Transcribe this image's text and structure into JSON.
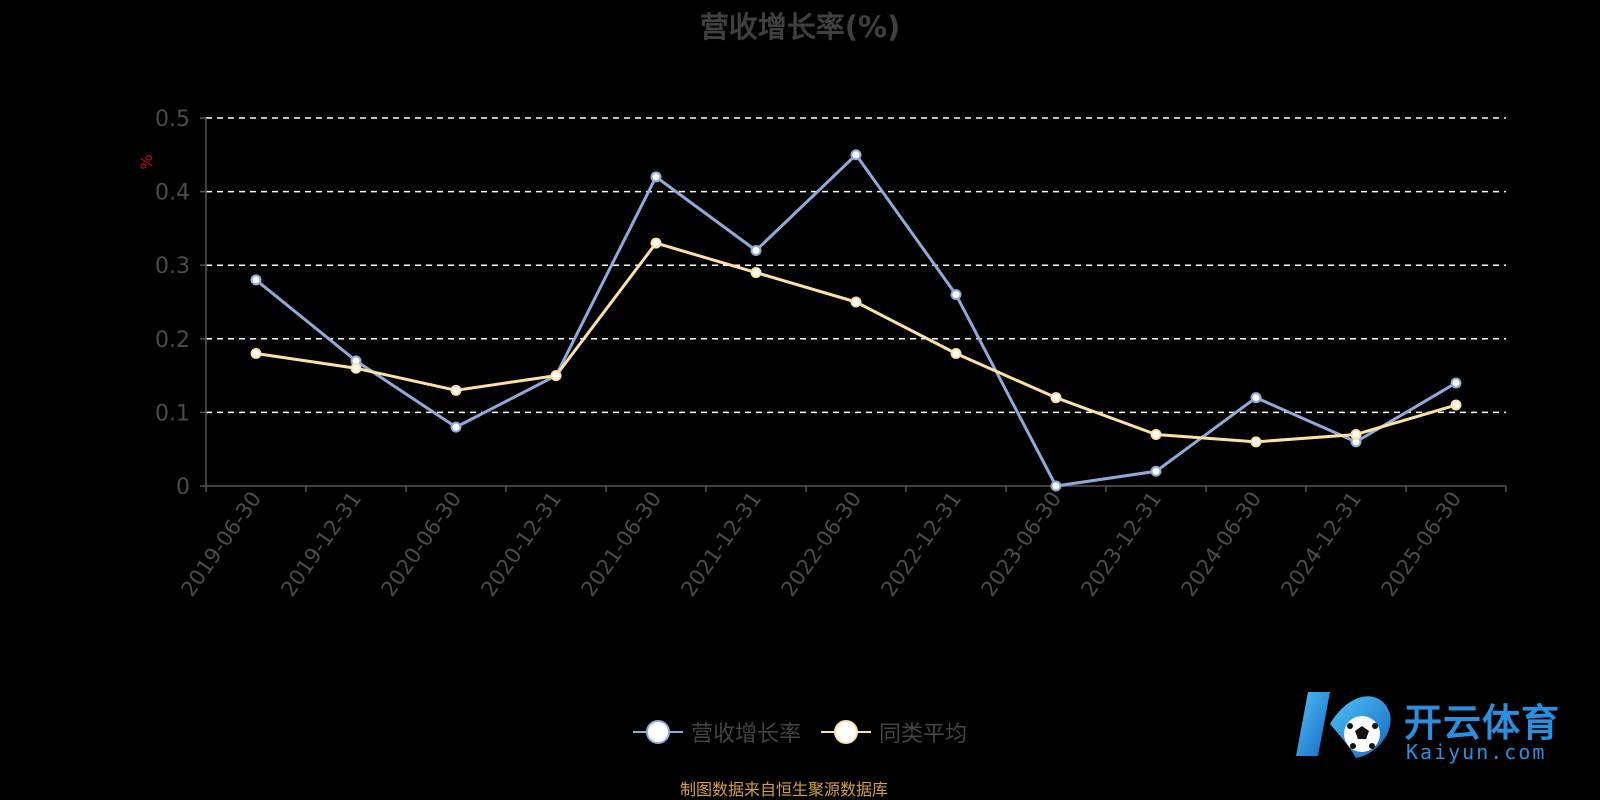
{
  "colors": {
    "background": "#000000",
    "series_revenue_growth": "#8eaadb",
    "series_peer_average": "#ffe0a3",
    "grid": "#ffffff",
    "axis": "#555555",
    "y_unit": "#d0021b",
    "source_note": "#d4a23a"
  },
  "chart_data": {
    "type": "line",
    "title": "营收增长率(%)",
    "ylabel": "%",
    "xlabel": "",
    "categories": [
      "2019-06-30",
      "2019-12-31",
      "2020-06-30",
      "2020-12-31",
      "2021-06-30",
      "2021-12-31",
      "2022-06-30",
      "2022-12-31",
      "2023-06-30",
      "2023-12-31",
      "2024-06-30",
      "2024-12-31",
      "2025-06-30"
    ],
    "ylim": [
      0,
      0.5
    ],
    "yticks": [
      "0",
      "0.1",
      "0.2",
      "0.3",
      "0.4",
      "0.5"
    ],
    "grid": "horizontal dashed",
    "legend_position": "bottom-center",
    "series": [
      {
        "name": "营收增长率",
        "color": "#8eaadb",
        "values": [
          0.28,
          0.17,
          0.08,
          0.15,
          0.42,
          0.32,
          0.45,
          0.26,
          0.0,
          0.02,
          0.12,
          0.06,
          0.14
        ]
      },
      {
        "name": "同类平均",
        "color": "#ffe0a3",
        "values": [
          0.18,
          0.16,
          0.13,
          0.15,
          0.33,
          0.29,
          0.25,
          0.18,
          0.12,
          0.07,
          0.06,
          0.07,
          0.11
        ]
      }
    ]
  },
  "legend": {
    "items": [
      {
        "label": "营收增长率",
        "icon": "circle-line-marker"
      },
      {
        "label": "同类平均",
        "icon": "circle-line-marker"
      }
    ]
  },
  "source_note": "制图数据来自恒生聚源数据库",
  "watermark": {
    "brand": "开云体育",
    "domain": "Kaiyun.com",
    "icon": "k-soccer-ball-logo"
  }
}
